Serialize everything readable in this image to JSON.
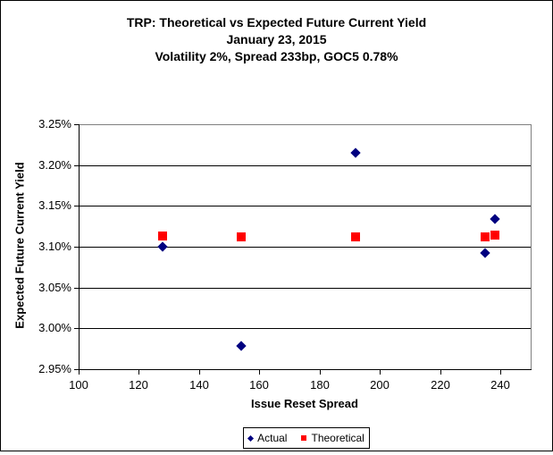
{
  "chart_data": {
    "type": "scatter",
    "title": "TRP: Theoretical vs Expected Future Current Yield",
    "subtitle": "January 23, 2015",
    "subtitle2": "Volatility 2%, Spread 233bp, GOC5 0.78%",
    "xlabel": "Issue Reset Spread",
    "ylabel": "Expected Future Current Yield",
    "xlim": [
      100,
      250
    ],
    "ylim": [
      2.95,
      3.25
    ],
    "y_unit": "%",
    "grid": true,
    "legend_position": "bottom",
    "x_ticks": [
      {
        "value": 100,
        "label": "100"
      },
      {
        "value": 120,
        "label": "120"
      },
      {
        "value": 140,
        "label": "140"
      },
      {
        "value": 160,
        "label": "160"
      },
      {
        "value": 180,
        "label": "180"
      },
      {
        "value": 200,
        "label": "200"
      },
      {
        "value": 220,
        "label": "220"
      },
      {
        "value": 240,
        "label": "240"
      }
    ],
    "y_ticks": [
      {
        "value": 3.25,
        "label": "3.25%"
      },
      {
        "value": 3.2,
        "label": "3.20%"
      },
      {
        "value": 3.15,
        "label": "3.15%"
      },
      {
        "value": 3.1,
        "label": "3.10%"
      },
      {
        "value": 3.05,
        "label": "3.05%"
      },
      {
        "value": 3.0,
        "label": "3.00%"
      },
      {
        "value": 2.95,
        "label": "2.95%"
      }
    ],
    "colors": {
      "gridline": "#000000",
      "plot_border": "#808080",
      "axis": "#000000",
      "actual": "#000080",
      "theoretical": "#ff0000"
    },
    "series": [
      {
        "name": "Actual",
        "marker": "diamond",
        "color": "#000080",
        "points": [
          {
            "x": 128,
            "y": 3.1
          },
          {
            "x": 154,
            "y": 2.979
          },
          {
            "x": 192,
            "y": 3.215
          },
          {
            "x": 235,
            "y": 3.092
          },
          {
            "x": 238,
            "y": 3.134
          }
        ]
      },
      {
        "name": "Theoretical",
        "marker": "square",
        "color": "#ff0000",
        "points": [
          {
            "x": 128,
            "y": 3.113
          },
          {
            "x": 154,
            "y": 3.112
          },
          {
            "x": 192,
            "y": 3.112
          },
          {
            "x": 235,
            "y": 3.112
          },
          {
            "x": 238,
            "y": 3.114
          }
        ]
      }
    ]
  }
}
